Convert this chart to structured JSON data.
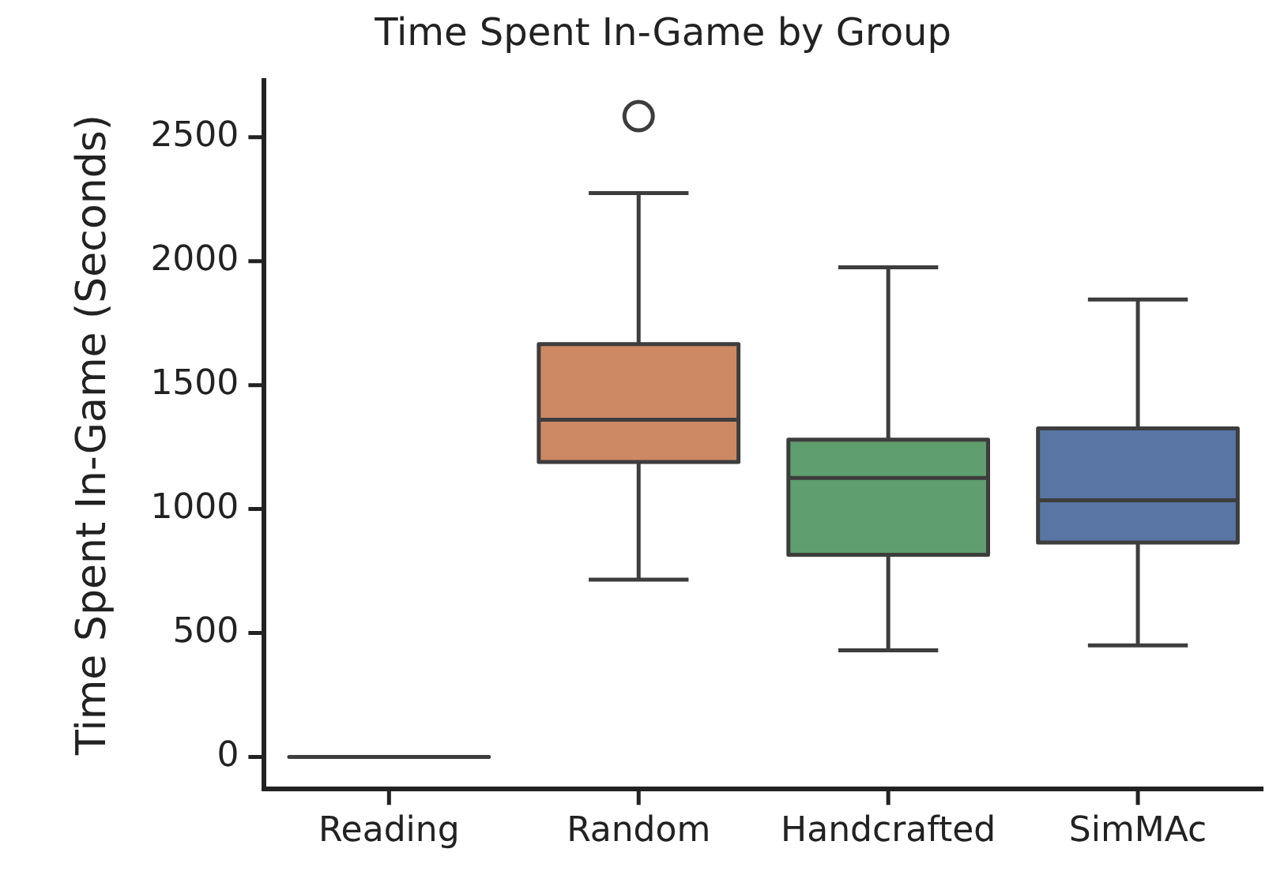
{
  "chart_data": {
    "type": "box",
    "title": "Time Spent In-Game by Group",
    "ylabel": "Time Spent In-Game (Seconds)",
    "categories": [
      "Reading",
      "Random",
      "Handcrafted",
      "SimMAc"
    ],
    "colors": [
      "#3d3d3d",
      "#cc8963",
      "#5f9e6e",
      "#5975a4"
    ],
    "boxes": [
      {
        "low": 0,
        "q1": 0,
        "median": 0,
        "q3": 0,
        "high": 0
      },
      {
        "low": 715,
        "q1": 1190,
        "median": 1360,
        "q3": 1665,
        "high": 2275,
        "outliers": [
          2585
        ]
      },
      {
        "low": 430,
        "q1": 815,
        "median": 1125,
        "q3": 1280,
        "high": 1975
      },
      {
        "low": 450,
        "q1": 865,
        "median": 1035,
        "q3": 1325,
        "high": 1845
      }
    ],
    "ylim": [
      -130,
      2730
    ],
    "yticks": [
      0,
      500,
      1000,
      1500,
      2000,
      2500
    ],
    "grid": false,
    "legend": false
  }
}
